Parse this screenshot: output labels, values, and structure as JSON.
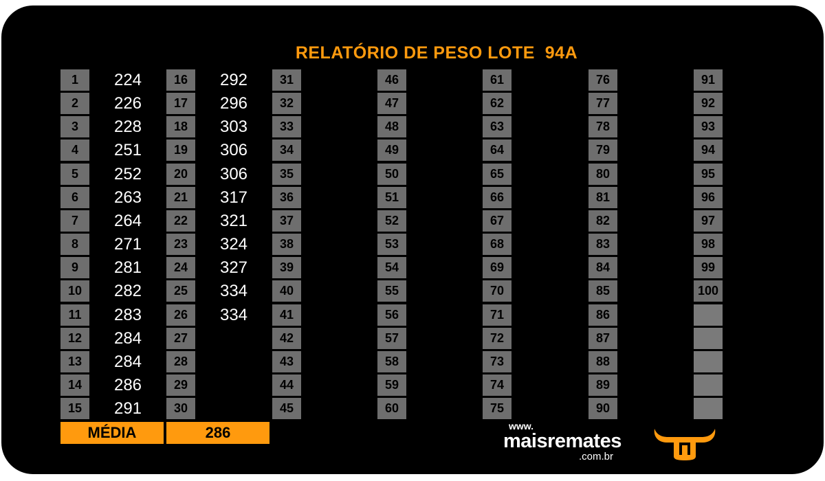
{
  "title": "RELATÓRIO DE PESO LOTE  94A",
  "columns": [
    {
      "rows": [
        {
          "n": "1",
          "v": "224"
        },
        {
          "n": "2",
          "v": "226"
        },
        {
          "n": "3",
          "v": "228"
        },
        {
          "n": "4",
          "v": "251"
        },
        {
          "n": "5",
          "v": "252"
        },
        {
          "n": "6",
          "v": "263"
        },
        {
          "n": "7",
          "v": "264"
        },
        {
          "n": "8",
          "v": "271"
        },
        {
          "n": "9",
          "v": "281"
        },
        {
          "n": "10",
          "v": "282"
        },
        {
          "n": "11",
          "v": "283"
        },
        {
          "n": "12",
          "v": "284"
        },
        {
          "n": "13",
          "v": "284"
        },
        {
          "n": "14",
          "v": "286"
        },
        {
          "n": "15",
          "v": "291"
        }
      ]
    },
    {
      "rows": [
        {
          "n": "16",
          "v": "292"
        },
        {
          "n": "17",
          "v": "296"
        },
        {
          "n": "18",
          "v": "303"
        },
        {
          "n": "19",
          "v": "306"
        },
        {
          "n": "20",
          "v": "306"
        },
        {
          "n": "21",
          "v": "317"
        },
        {
          "n": "22",
          "v": "321"
        },
        {
          "n": "23",
          "v": "324"
        },
        {
          "n": "24",
          "v": "327"
        },
        {
          "n": "25",
          "v": "334"
        },
        {
          "n": "26",
          "v": "334"
        },
        {
          "n": "27",
          "v": ""
        },
        {
          "n": "28",
          "v": ""
        },
        {
          "n": "29",
          "v": ""
        },
        {
          "n": "30",
          "v": ""
        }
      ]
    },
    {
      "rows": [
        {
          "n": "31",
          "v": ""
        },
        {
          "n": "32",
          "v": ""
        },
        {
          "n": "33",
          "v": ""
        },
        {
          "n": "34",
          "v": ""
        },
        {
          "n": "35",
          "v": ""
        },
        {
          "n": "36",
          "v": ""
        },
        {
          "n": "37",
          "v": ""
        },
        {
          "n": "38",
          "v": ""
        },
        {
          "n": "39",
          "v": ""
        },
        {
          "n": "40",
          "v": ""
        },
        {
          "n": "41",
          "v": ""
        },
        {
          "n": "42",
          "v": ""
        },
        {
          "n": "43",
          "v": ""
        },
        {
          "n": "44",
          "v": ""
        },
        {
          "n": "45",
          "v": ""
        }
      ]
    },
    {
      "rows": [
        {
          "n": "46",
          "v": ""
        },
        {
          "n": "47",
          "v": ""
        },
        {
          "n": "48",
          "v": ""
        },
        {
          "n": "49",
          "v": ""
        },
        {
          "n": "50",
          "v": ""
        },
        {
          "n": "51",
          "v": ""
        },
        {
          "n": "52",
          "v": ""
        },
        {
          "n": "53",
          "v": ""
        },
        {
          "n": "54",
          "v": ""
        },
        {
          "n": "55",
          "v": ""
        },
        {
          "n": "56",
          "v": ""
        },
        {
          "n": "57",
          "v": ""
        },
        {
          "n": "58",
          "v": ""
        },
        {
          "n": "59",
          "v": ""
        },
        {
          "n": "60",
          "v": ""
        }
      ]
    },
    {
      "rows": [
        {
          "n": "61",
          "v": ""
        },
        {
          "n": "62",
          "v": ""
        },
        {
          "n": "63",
          "v": ""
        },
        {
          "n": "64",
          "v": ""
        },
        {
          "n": "65",
          "v": ""
        },
        {
          "n": "66",
          "v": ""
        },
        {
          "n": "67",
          "v": ""
        },
        {
          "n": "68",
          "v": ""
        },
        {
          "n": "69",
          "v": ""
        },
        {
          "n": "70",
          "v": ""
        },
        {
          "n": "71",
          "v": ""
        },
        {
          "n": "72",
          "v": ""
        },
        {
          "n": "73",
          "v": ""
        },
        {
          "n": "74",
          "v": ""
        },
        {
          "n": "75",
          "v": ""
        }
      ]
    },
    {
      "rows": [
        {
          "n": "76",
          "v": ""
        },
        {
          "n": "77",
          "v": ""
        },
        {
          "n": "78",
          "v": ""
        },
        {
          "n": "79",
          "v": ""
        },
        {
          "n": "80",
          "v": ""
        },
        {
          "n": "81",
          "v": ""
        },
        {
          "n": "82",
          "v": ""
        },
        {
          "n": "83",
          "v": ""
        },
        {
          "n": "84",
          "v": ""
        },
        {
          "n": "85",
          "v": ""
        },
        {
          "n": "86",
          "v": ""
        },
        {
          "n": "87",
          "v": ""
        },
        {
          "n": "88",
          "v": ""
        },
        {
          "n": "89",
          "v": ""
        },
        {
          "n": "90",
          "v": ""
        }
      ]
    },
    {
      "rows": [
        {
          "n": "91",
          "v": ""
        },
        {
          "n": "92",
          "v": ""
        },
        {
          "n": "93",
          "v": ""
        },
        {
          "n": "94",
          "v": ""
        },
        {
          "n": "95",
          "v": ""
        },
        {
          "n": "96",
          "v": ""
        },
        {
          "n": "97",
          "v": ""
        },
        {
          "n": "98",
          "v": ""
        },
        {
          "n": "99",
          "v": ""
        },
        {
          "n": "100",
          "v": ""
        },
        {
          "n": "",
          "v": ""
        },
        {
          "n": "",
          "v": ""
        },
        {
          "n": "",
          "v": ""
        },
        {
          "n": "",
          "v": ""
        },
        {
          "n": "",
          "v": ""
        }
      ]
    }
  ],
  "media": {
    "label": "MÉDIA",
    "value": "286"
  },
  "brand": {
    "www": "www.",
    "name": "maisremates",
    "domain": ".com.br"
  },
  "colors": {
    "accent": "#ff9a0e",
    "cell": "#6e6e6e",
    "background": "#000000"
  },
  "logo_icon": "bull-head-icon"
}
